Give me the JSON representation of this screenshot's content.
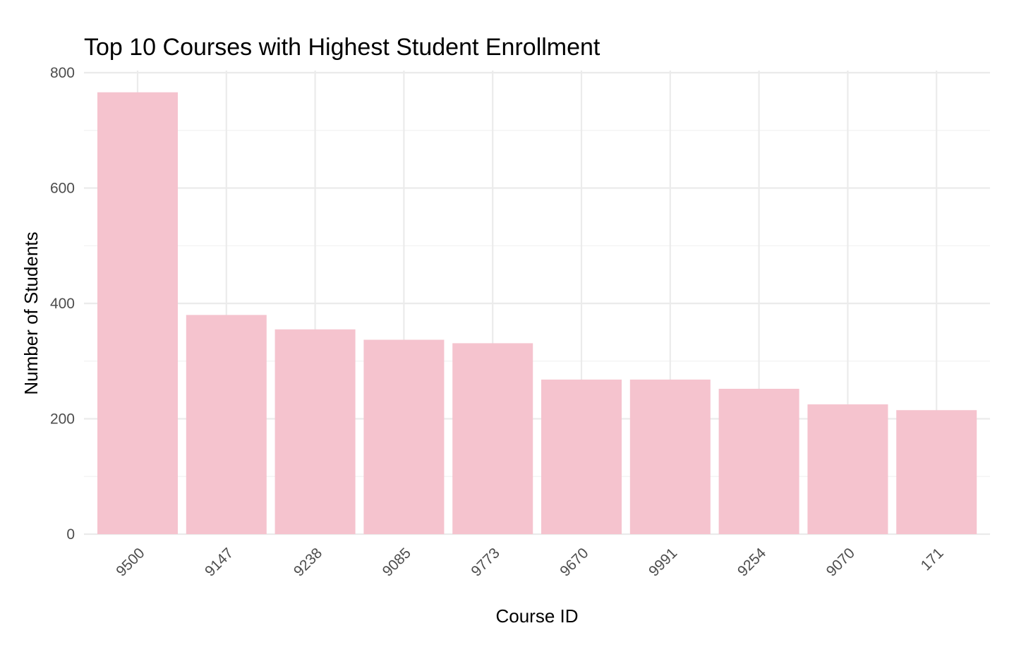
{
  "chart_data": {
    "type": "bar",
    "title": "Top 10 Courses with Highest Student Enrollment",
    "xlabel": "Course ID",
    "ylabel": "Number of Students",
    "categories": [
      "9500",
      "9147",
      "9238",
      "9085",
      "9773",
      "9670",
      "9991",
      "9254",
      "9070",
      "171"
    ],
    "values": [
      766,
      380,
      355,
      337,
      331,
      268,
      268,
      252,
      225,
      215
    ],
    "ylim": [
      0,
      800
    ],
    "yticks": [
      0,
      200,
      400,
      600,
      800
    ],
    "grid": true,
    "legend": "none",
    "bar_color": "#f5c3ce"
  }
}
